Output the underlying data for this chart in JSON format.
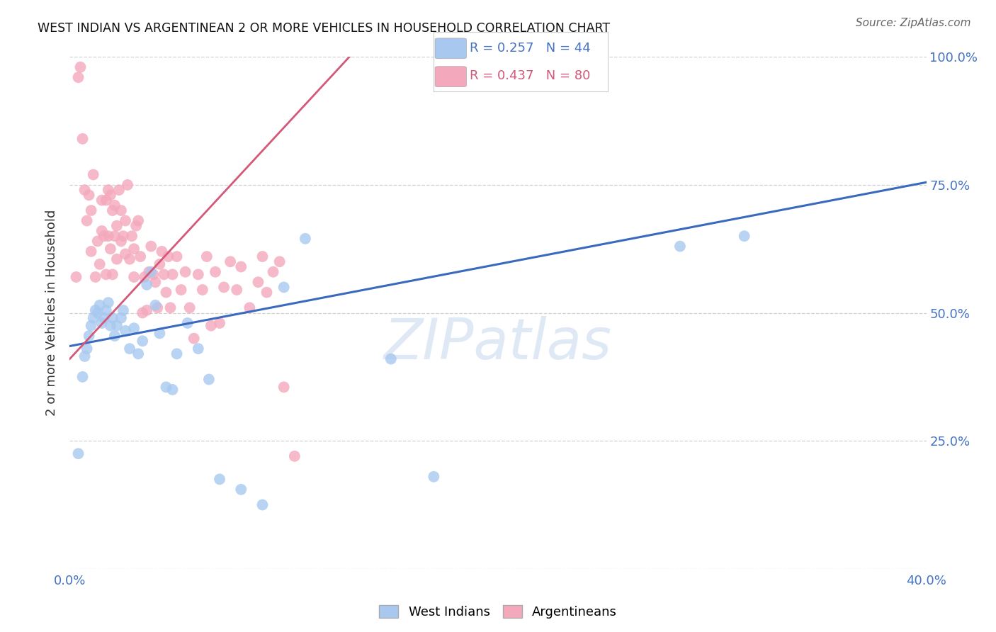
{
  "title": "WEST INDIAN VS ARGENTINEAN 2 OR MORE VEHICLES IN HOUSEHOLD CORRELATION CHART",
  "source": "Source: ZipAtlas.com",
  "ylabel": "2 or more Vehicles in Household",
  "xlim": [
    0.0,
    0.4
  ],
  "ylim": [
    0.0,
    1.0
  ],
  "west_indian_color": "#a8c8f0",
  "argentinean_color": "#f4a8bc",
  "west_indian_line_color": "#3a6abf",
  "argentinean_line_color": "#d45878",
  "background_color": "#ffffff",
  "watermark": "ZIPatlas",
  "wi_line": [
    0.0,
    0.435,
    0.4,
    0.755
  ],
  "arg_line": [
    0.0,
    0.41,
    0.135,
    1.02
  ],
  "west_indian_x": [
    0.004,
    0.006,
    0.007,
    0.008,
    0.009,
    0.01,
    0.011,
    0.012,
    0.013,
    0.014,
    0.015,
    0.016,
    0.017,
    0.018,
    0.019,
    0.02,
    0.021,
    0.022,
    0.024,
    0.025,
    0.026,
    0.028,
    0.03,
    0.032,
    0.034,
    0.036,
    0.038,
    0.04,
    0.042,
    0.045,
    0.048,
    0.05,
    0.055,
    0.06,
    0.065,
    0.07,
    0.08,
    0.09,
    0.1,
    0.11,
    0.15,
    0.17,
    0.285,
    0.315
  ],
  "west_indian_y": [
    0.225,
    0.375,
    0.415,
    0.43,
    0.455,
    0.475,
    0.49,
    0.505,
    0.5,
    0.515,
    0.48,
    0.49,
    0.505,
    0.52,
    0.475,
    0.49,
    0.455,
    0.475,
    0.49,
    0.505,
    0.465,
    0.43,
    0.47,
    0.42,
    0.445,
    0.555,
    0.58,
    0.515,
    0.46,
    0.355,
    0.35,
    0.42,
    0.48,
    0.43,
    0.37,
    0.175,
    0.155,
    0.125,
    0.55,
    0.645,
    0.41,
    0.18,
    0.63,
    0.65
  ],
  "argentinean_x": [
    0.003,
    0.004,
    0.005,
    0.006,
    0.007,
    0.008,
    0.009,
    0.01,
    0.01,
    0.011,
    0.012,
    0.013,
    0.014,
    0.015,
    0.015,
    0.016,
    0.017,
    0.017,
    0.018,
    0.018,
    0.019,
    0.019,
    0.02,
    0.02,
    0.021,
    0.021,
    0.022,
    0.022,
    0.023,
    0.024,
    0.024,
    0.025,
    0.026,
    0.026,
    0.027,
    0.028,
    0.029,
    0.03,
    0.03,
    0.031,
    0.032,
    0.033,
    0.034,
    0.035,
    0.036,
    0.037,
    0.038,
    0.039,
    0.04,
    0.041,
    0.042,
    0.043,
    0.044,
    0.045,
    0.046,
    0.047,
    0.048,
    0.05,
    0.052,
    0.054,
    0.056,
    0.058,
    0.06,
    0.062,
    0.064,
    0.066,
    0.068,
    0.07,
    0.072,
    0.075,
    0.078,
    0.08,
    0.084,
    0.088,
    0.09,
    0.092,
    0.095,
    0.098,
    0.1,
    0.105
  ],
  "argentinean_y": [
    0.57,
    0.96,
    0.98,
    0.84,
    0.74,
    0.68,
    0.73,
    0.62,
    0.7,
    0.77,
    0.57,
    0.64,
    0.595,
    0.66,
    0.72,
    0.65,
    0.72,
    0.575,
    0.65,
    0.74,
    0.625,
    0.73,
    0.7,
    0.575,
    0.65,
    0.71,
    0.605,
    0.67,
    0.74,
    0.7,
    0.64,
    0.65,
    0.615,
    0.68,
    0.75,
    0.605,
    0.65,
    0.57,
    0.625,
    0.67,
    0.68,
    0.61,
    0.5,
    0.57,
    0.505,
    0.58,
    0.63,
    0.575,
    0.56,
    0.51,
    0.595,
    0.62,
    0.575,
    0.54,
    0.61,
    0.51,
    0.575,
    0.61,
    0.545,
    0.58,
    0.51,
    0.45,
    0.575,
    0.545,
    0.61,
    0.475,
    0.58,
    0.48,
    0.55,
    0.6,
    0.545,
    0.59,
    0.51,
    0.56,
    0.61,
    0.54,
    0.58,
    0.6,
    0.355,
    0.22
  ]
}
